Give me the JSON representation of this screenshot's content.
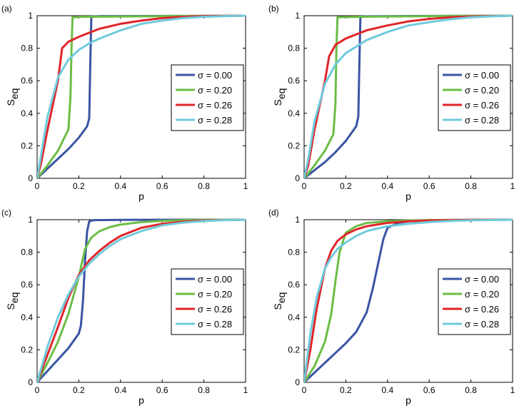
{
  "figure": {
    "description_panels": [
      "(a)",
      "(b)",
      "(c)",
      "(d)"
    ]
  },
  "colors": {
    "sigma_000": "#3a54a4",
    "sigma_020": "#6cbd45",
    "sigma_026": "#e0252a",
    "sigma_028": "#6fcbdc"
  },
  "chart_data": [
    {
      "panel_label": "(a)",
      "type": "line",
      "xlabel": "p",
      "ylabel_main": "S",
      "ylabel_sub": "eq",
      "xlim": [
        0,
        1
      ],
      "ylim": [
        0,
        1
      ],
      "xticks": [
        0,
        0.2,
        0.4,
        0.6,
        0.8,
        1
      ],
      "yticks": [
        0,
        0.2,
        0.4,
        0.6,
        0.8,
        1
      ],
      "xtick_labels": [
        "0",
        "0.2",
        "0.4",
        "0.6",
        "0.8",
        "1"
      ],
      "ytick_labels": [
        "0",
        "0.2",
        "0.4",
        "0.6",
        "0.8",
        "1"
      ],
      "legend_position": "right-middle",
      "series": [
        {
          "name": "σ = 0.00",
          "color": "#3a54a4",
          "x": [
            0,
            0.05,
            0.1,
            0.15,
            0.2,
            0.24,
            0.25,
            0.255,
            0.26,
            0.27,
            0.3,
            0.5,
            0.8,
            1
          ],
          "y": [
            0,
            0.06,
            0.12,
            0.18,
            0.25,
            0.32,
            0.37,
            0.7,
            0.99,
            0.995,
            0.997,
            0.998,
            0.999,
            1
          ]
        },
        {
          "name": "σ = 0.20",
          "color": "#6cbd45",
          "x": [
            0,
            0.05,
            0.1,
            0.15,
            0.16,
            0.165,
            0.17,
            0.2,
            0.4,
            0.7,
            1
          ],
          "y": [
            0,
            0.08,
            0.17,
            0.3,
            0.5,
            0.8,
            0.99,
            0.993,
            0.995,
            0.998,
            1
          ]
        },
        {
          "name": "σ = 0.26",
          "color": "#e0252a",
          "x": [
            0,
            0.02,
            0.05,
            0.1,
            0.12,
            0.15,
            0.2,
            0.3,
            0.4,
            0.5,
            0.6,
            0.7,
            0.8,
            0.9,
            1
          ],
          "y": [
            0,
            0.1,
            0.3,
            0.6,
            0.8,
            0.84,
            0.87,
            0.92,
            0.95,
            0.97,
            0.985,
            0.993,
            0.997,
            0.999,
            1
          ]
        },
        {
          "name": "σ = 0.28",
          "color": "#6fcbdc",
          "x": [
            0,
            0.02,
            0.05,
            0.1,
            0.15,
            0.2,
            0.25,
            0.3,
            0.4,
            0.5,
            0.6,
            0.7,
            0.8,
            0.9,
            1
          ],
          "y": [
            0,
            0.15,
            0.38,
            0.62,
            0.73,
            0.79,
            0.83,
            0.86,
            0.91,
            0.95,
            0.97,
            0.985,
            0.993,
            0.997,
            1
          ]
        }
      ],
      "legend": [
        "σ = 0.00",
        "σ = 0.20",
        "σ = 0.26",
        "σ = 0.28"
      ]
    },
    {
      "panel_label": "(b)",
      "type": "line",
      "xlabel": "p",
      "ylabel_main": "S",
      "ylabel_sub": "eq",
      "xlim": [
        0,
        1
      ],
      "ylim": [
        0,
        1
      ],
      "xticks": [
        0,
        0.2,
        0.4,
        0.6,
        0.8,
        1
      ],
      "yticks": [
        0,
        0.2,
        0.4,
        0.6,
        0.8,
        1
      ],
      "xtick_labels": [
        "0",
        "0.2",
        "0.4",
        "0.6",
        "0.8",
        "1"
      ],
      "ytick_labels": [
        "0",
        "0.2",
        "0.4",
        "0.6",
        "0.8",
        "1"
      ],
      "legend_position": "right-middle",
      "series": [
        {
          "name": "σ = 0.00",
          "color": "#3a54a4",
          "x": [
            0,
            0.05,
            0.1,
            0.15,
            0.2,
            0.25,
            0.26,
            0.265,
            0.27,
            0.28,
            0.3,
            0.5,
            0.8,
            1
          ],
          "y": [
            0,
            0.05,
            0.1,
            0.16,
            0.23,
            0.32,
            0.38,
            0.7,
            0.99,
            0.993,
            0.996,
            0.998,
            0.999,
            1
          ]
        },
        {
          "name": "σ = 0.20",
          "color": "#6cbd45",
          "x": [
            0,
            0.05,
            0.1,
            0.14,
            0.15,
            0.155,
            0.16,
            0.2,
            0.4,
            0.7,
            1
          ],
          "y": [
            0,
            0.08,
            0.17,
            0.27,
            0.45,
            0.8,
            0.99,
            0.992,
            0.995,
            0.998,
            1
          ]
        },
        {
          "name": "σ = 0.26",
          "color": "#e0252a",
          "x": [
            0,
            0.02,
            0.05,
            0.1,
            0.12,
            0.15,
            0.2,
            0.3,
            0.4,
            0.5,
            0.6,
            0.7,
            0.8,
            0.9,
            1
          ],
          "y": [
            0,
            0.08,
            0.3,
            0.6,
            0.75,
            0.82,
            0.86,
            0.91,
            0.94,
            0.965,
            0.98,
            0.99,
            0.995,
            0.998,
            1
          ]
        },
        {
          "name": "σ = 0.28",
          "color": "#6fcbdc",
          "x": [
            0,
            0.02,
            0.05,
            0.1,
            0.15,
            0.2,
            0.25,
            0.3,
            0.4,
            0.5,
            0.6,
            0.7,
            0.8,
            0.9,
            1
          ],
          "y": [
            0,
            0.12,
            0.35,
            0.58,
            0.7,
            0.77,
            0.81,
            0.85,
            0.9,
            0.94,
            0.96,
            0.978,
            0.99,
            0.996,
            1
          ]
        }
      ],
      "legend": [
        "σ = 0.00",
        "σ = 0.20",
        "σ = 0.26",
        "σ = 0.28"
      ]
    },
    {
      "panel_label": "(c)",
      "type": "line",
      "xlabel": "p",
      "ylabel_main": "S",
      "ylabel_sub": "eq",
      "xlim": [
        0,
        1
      ],
      "ylim": [
        0,
        1
      ],
      "xticks": [
        0,
        0.2,
        0.4,
        0.6,
        0.8,
        1
      ],
      "yticks": [
        0,
        0.2,
        0.4,
        0.6,
        0.8,
        1
      ],
      "xtick_labels": [
        "0",
        "0.2",
        "0.4",
        "0.6",
        "0.8",
        "1"
      ],
      "ytick_labels": [
        "0",
        "0.2",
        "0.4",
        "0.6",
        "0.8",
        "1"
      ],
      "legend_position": "right-middle",
      "series": [
        {
          "name": "σ = 0.00",
          "color": "#3a54a4",
          "x": [
            0,
            0.05,
            0.1,
            0.15,
            0.2,
            0.21,
            0.22,
            0.23,
            0.24,
            0.25,
            0.27,
            0.4,
            0.7,
            1
          ],
          "y": [
            0,
            0.07,
            0.14,
            0.21,
            0.3,
            0.35,
            0.5,
            0.75,
            0.93,
            0.99,
            0.997,
            0.999,
            1,
            1
          ]
        },
        {
          "name": "σ = 0.20",
          "color": "#6cbd45",
          "x": [
            0,
            0.05,
            0.1,
            0.15,
            0.2,
            0.23,
            0.26,
            0.3,
            0.35,
            0.4,
            0.5,
            0.6,
            0.7,
            0.8,
            1
          ],
          "y": [
            0,
            0.12,
            0.25,
            0.42,
            0.65,
            0.82,
            0.89,
            0.93,
            0.955,
            0.97,
            0.985,
            0.993,
            0.997,
            0.999,
            1
          ]
        },
        {
          "name": "σ = 0.26",
          "color": "#e0252a",
          "x": [
            0,
            0.05,
            0.1,
            0.15,
            0.2,
            0.25,
            0.3,
            0.35,
            0.4,
            0.5,
            0.6,
            0.7,
            0.8,
            0.9,
            1
          ],
          "y": [
            0,
            0.17,
            0.34,
            0.52,
            0.66,
            0.75,
            0.81,
            0.86,
            0.9,
            0.95,
            0.975,
            0.988,
            0.995,
            0.998,
            1
          ]
        },
        {
          "name": "σ = 0.28",
          "color": "#6fcbdc",
          "x": [
            0,
            0.05,
            0.1,
            0.15,
            0.2,
            0.25,
            0.3,
            0.35,
            0.4,
            0.5,
            0.6,
            0.7,
            0.8,
            0.9,
            1
          ],
          "y": [
            0,
            0.22,
            0.4,
            0.54,
            0.65,
            0.73,
            0.79,
            0.84,
            0.88,
            0.93,
            0.965,
            0.982,
            0.992,
            0.997,
            1
          ]
        }
      ],
      "legend": [
        "σ = 0.00",
        "σ = 0.20",
        "σ = 0.26",
        "σ = 0.28"
      ]
    },
    {
      "panel_label": "(d)",
      "type": "line",
      "xlabel": "p",
      "ylabel_main": "S",
      "ylabel_sub": "eq",
      "xlim": [
        0,
        1
      ],
      "ylim": [
        0,
        1
      ],
      "xticks": [
        0,
        0.2,
        0.4,
        0.6,
        0.8,
        1
      ],
      "yticks": [
        0,
        0.2,
        0.4,
        0.6,
        0.8,
        1
      ],
      "xtick_labels": [
        "0",
        "0.2",
        "0.4",
        "0.6",
        "0.8",
        "1"
      ],
      "ytick_labels": [
        "0",
        "0.2",
        "0.4",
        "0.6",
        "0.8",
        "1"
      ],
      "legend_position": "right-middle",
      "series": [
        {
          "name": "σ = 0.00",
          "color": "#3a54a4",
          "x": [
            0,
            0.05,
            0.1,
            0.15,
            0.2,
            0.25,
            0.3,
            0.33,
            0.36,
            0.38,
            0.4,
            0.45,
            0.5,
            0.6,
            0.8,
            1
          ],
          "y": [
            0,
            0.06,
            0.12,
            0.18,
            0.24,
            0.31,
            0.43,
            0.58,
            0.76,
            0.88,
            0.95,
            0.98,
            0.99,
            0.997,
            0.999,
            1
          ]
        },
        {
          "name": "σ = 0.20",
          "color": "#6cbd45",
          "x": [
            0,
            0.05,
            0.1,
            0.13,
            0.15,
            0.17,
            0.2,
            0.25,
            0.3,
            0.4,
            0.5,
            0.6,
            0.8,
            1
          ],
          "y": [
            0,
            0.1,
            0.25,
            0.42,
            0.62,
            0.8,
            0.92,
            0.96,
            0.98,
            0.99,
            0.995,
            0.998,
            0.999,
            1
          ]
        },
        {
          "name": "σ = 0.26",
          "color": "#e0252a",
          "x": [
            0,
            0.03,
            0.06,
            0.1,
            0.13,
            0.16,
            0.2,
            0.25,
            0.3,
            0.4,
            0.5,
            0.6,
            0.8,
            1
          ],
          "y": [
            0,
            0.2,
            0.45,
            0.7,
            0.81,
            0.87,
            0.91,
            0.94,
            0.96,
            0.98,
            0.99,
            0.995,
            0.999,
            1
          ]
        },
        {
          "name": "σ = 0.28",
          "color": "#6fcbdc",
          "x": [
            0,
            0.03,
            0.06,
            0.1,
            0.13,
            0.16,
            0.2,
            0.25,
            0.3,
            0.4,
            0.5,
            0.6,
            0.7,
            0.8,
            1
          ],
          "y": [
            0,
            0.3,
            0.52,
            0.7,
            0.77,
            0.82,
            0.86,
            0.9,
            0.93,
            0.96,
            0.975,
            0.985,
            0.992,
            0.996,
            1
          ]
        }
      ],
      "legend": [
        "σ = 0.00",
        "σ = 0.20",
        "σ = 0.26",
        "σ = 0.28"
      ]
    }
  ]
}
